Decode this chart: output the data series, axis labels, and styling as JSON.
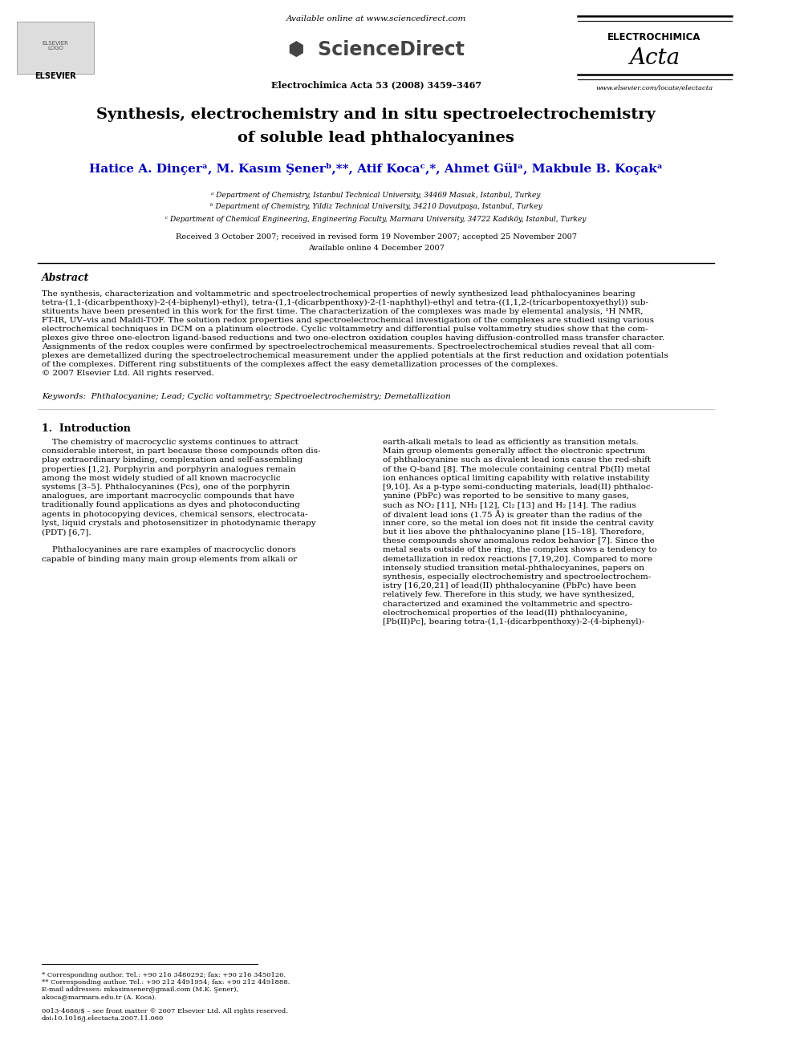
{
  "title_line1": "Synthesis, electrochemistry and in situ spectroelectrochemistry",
  "title_line2": "of soluble lead phthalocyanines",
  "authors": "Hatice A. Dinçerᵃ, M. Kasım Şenerᵇ,**, Atif Kocaᶜ,*, Ahmet Gülᵃ, Makbule B. Koçakᵃ",
  "affil_a": "ᵃ Department of Chemistry, Istanbul Technical University, 34469 Masıak, Istanbul, Turkey",
  "affil_b": "ᵇ Department of Chemistry, Yildiz Technical University, 34210 Davutpaşa, Istanbul, Turkey",
  "affil_c": "ᶜ Department of Chemical Engineering, Engineering Faculty, Marmara University, 34722 Kadıköy, Istanbul, Turkey",
  "received": "Received 3 October 2007; received in revised form 19 November 2007; accepted 25 November 2007",
  "available": "Available online 4 December 2007",
  "journal": "Electrochimica Acta 53 (2008) 3459–3467",
  "available_online": "Available online at www.sciencedirect.com",
  "elsevier_text": "ELSEVIER",
  "electrochimica_text": "ELECTROCHIMICA",
  "acta_text": "Acta",
  "website": "www.elsevier.com/locate/electacta",
  "abstract_title": "Abstract",
  "keywords": "Keywords:  Phthalocyanine; Lead; Cyclic voltammetry; Spectroelectrochemistry; Demetallization",
  "intro_title": "1.  Introduction",
  "footnote1": "* Corresponding author. Tel.: +90 216 3480292; fax: +90 216 3450126.",
  "footnote2": "** Corresponding author. Tel.: +90 212 4491954; fax: +90 212 4491888.",
  "footnote3": "E-mail addresses: mkasimsener@gmail.com (M.K. Şener),",
  "footnote4": "akoca@marmara.edu.tr (A. Koca).",
  "footnote5": "0013-4686/$ – see front matter © 2007 Elsevier Ltd. All rights reserved.",
  "footnote6": "doi:10.1016/j.electacta.2007.11.060",
  "abstract_lines": [
    "The synthesis, characterization and voltammetric and spectroelectrochemical properties of newly synthesized lead phthalocyanines bearing",
    "tetra-(1,1-(dicarbpenthoxy)-2-(4-biphenyl)-ethyl), tetra-(1,1-(dicarbpenthoxy)-2-(1-naphthyl)-ethyl and tetra-((1,1,2-(tricarbopentoxyethyl)) sub-",
    "stituents have been presented in this work for the first time. The characterization of the complexes was made by elemental analysis, ¹H NMR,",
    "FT-IR, UV–vis and Maldi-TOF. The solution redox properties and spectroelectrochemical investigation of the complexes are studied using various",
    "electrochemical techniques in DCM on a platinum electrode. Cyclic voltammetry and differential pulse voltammetry studies show that the com-",
    "plexes give three one-electron ligand-based reductions and two one-electron oxidation couples having diffusion-controlled mass transfer character.",
    "Assignments of the redox couples were confirmed by spectroelectrochemical measurements. Spectroelectrochemical studies reveal that all com-",
    "plexes are demetallized during the spectroelectrochemical measurement under the applied potentials at the first reduction and oxidation potentials",
    "of the complexes. Different ring substituents of the complexes affect the easy demetallization processes of the complexes.",
    "© 2007 Elsevier Ltd. All rights reserved."
  ],
  "col1_lines": [
    "    The chemistry of macrocyclic systems continues to attract",
    "considerable interest, in part because these compounds often dis-",
    "play extraordinary binding, complexation and self-assembling",
    "properties [1,2]. Porphyrin and porphyrin analogues remain",
    "among the most widely studied of all known macrocyclic",
    "systems [3–5]. Phthalocyanines (Pcs), one of the porphyrin",
    "analogues, are important macrocyclic compounds that have",
    "traditionally found applications as dyes and photoconducting",
    "agents in photocopying devices, chemical sensors, electrocata-",
    "lyst, liquid crystals and photosensitizer in photodynamic therapy",
    "(PDT) [6,7].",
    "",
    "    Phthalocyanines are rare examples of macrocyclic donors",
    "capable of binding many main group elements from alkali or"
  ],
  "col2_lines": [
    "earth-alkali metals to lead as efficiently as transition metals.",
    "Main group elements generally affect the electronic spectrum",
    "of phthalocyanine such as divalent lead ions cause the red-shift",
    "of the Q-band [8]. The molecule containing central Pb(II) metal",
    "ion enhances optical limiting capability with relative instability",
    "[9,10]. As a p-type semi-conducting materials, lead(II) phthaloc-",
    "yanine (PbPc) was reported to be sensitive to many gases,",
    "such as NO₂ [11], NH₃ [12], Cl₂ [13] and H₂ [14]. The radius",
    "of divalent lead ions (1.75 Å) is greater than the radius of the",
    "inner core, so the metal ion does not fit inside the central cavity",
    "but it lies above the phthalocyanine plane [15–18]. Therefore,",
    "these compounds show anomalous redox behavior [7]. Since the",
    "metal seats outside of the ring, the complex shows a tendency to",
    "demetallization in redox reactions [7,19,20]. Compared to more",
    "intensely studied transition metal-phthalocyanines, papers on",
    "synthesis, especially electrochemistry and spectroelectrochem-",
    "istry [16,20,21] of lead(II) phthalocyanine (PbPc) have been",
    "relatively few. Therefore in this study, we have synthesized,",
    "characterized and examined the voltammetric and spectro-",
    "electrochemical properties of the lead(II) phthalocyanine,",
    "[Pb(II)Pc], bearing tetra-(1,1-(dicarbpenthoxy)-2-(4-biphenyl)-"
  ],
  "bg_color": "#ffffff",
  "text_color": "#000000",
  "blue_color": "#0000bb",
  "title_fontsize": 14,
  "body_fontsize": 7.5,
  "author_fontsize": 11
}
